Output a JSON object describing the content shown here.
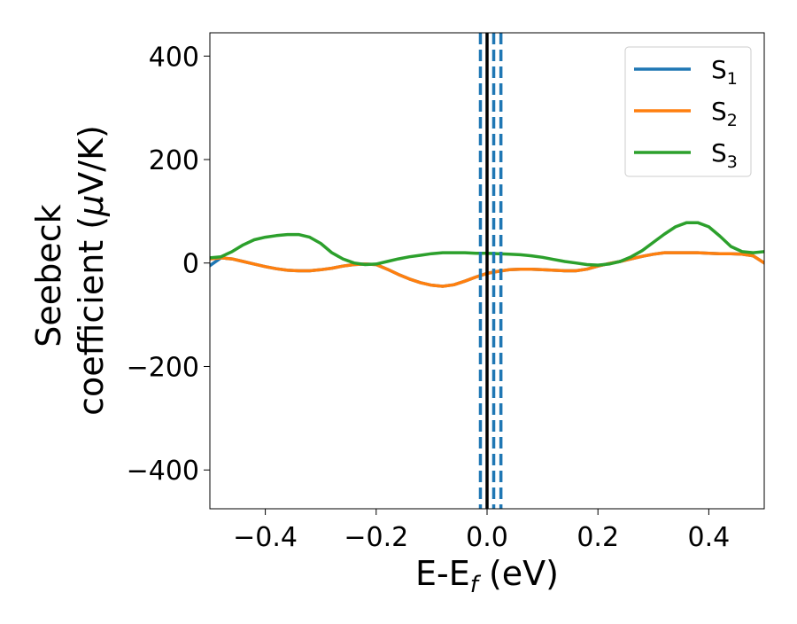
{
  "chart_data": {
    "type": "line",
    "title": "",
    "xlabel": "E-E",
    "xlabel_sub": "f",
    "xlabel_unit": " (eV)",
    "ylabel_line1": "Seebeck",
    "ylabel_line2": "coefficient  (",
    "ylabel_mu": "μ",
    "ylabel_unit": "V/K)",
    "xlim": [
      -0.5,
      0.5
    ],
    "ylim": [
      -475,
      445
    ],
    "xticks": [
      -0.4,
      -0.2,
      0.0,
      0.2,
      0.4
    ],
    "xtick_labels": [
      "−0.4",
      "−0.2",
      "0.0",
      "0.2",
      "0.4"
    ],
    "yticks": [
      -400,
      -200,
      0,
      200,
      400
    ],
    "ytick_labels": [
      "−400",
      "−200",
      "0",
      "200",
      "400"
    ],
    "grid": false,
    "legend_position": "top-right",
    "series": [
      {
        "name": "S",
        "name_sub": "1",
        "color": "#1f77b4",
        "x": [
          -0.5,
          -0.48,
          -0.46,
          -0.44,
          -0.42,
          -0.4,
          -0.38,
          -0.36,
          -0.34,
          -0.32,
          -0.3,
          -0.28,
          -0.26,
          -0.24,
          -0.22,
          -0.2,
          -0.18,
          -0.16,
          -0.14,
          -0.12,
          -0.1,
          -0.08,
          -0.06,
          -0.04,
          -0.02,
          0.0,
          0.02,
          0.04,
          0.06,
          0.08,
          0.1,
          0.12,
          0.14,
          0.16,
          0.18,
          0.2,
          0.22,
          0.24,
          0.26,
          0.28,
          0.3,
          0.32,
          0.34,
          0.36,
          0.38,
          0.4,
          0.42,
          0.44,
          0.46,
          0.48,
          0.5
        ],
        "y": [
          -5,
          10,
          8,
          3,
          -2,
          -7,
          -11,
          -14,
          -15,
          -15,
          -13,
          -10,
          -6,
          -3,
          -2,
          -3,
          -12,
          -22,
          -31,
          -38,
          -43,
          -45,
          -42,
          -35,
          -27,
          -20,
          -16,
          -13,
          -12,
          -12,
          -13,
          -14,
          -15,
          -15,
          -12,
          -6,
          -1,
          3,
          8,
          13,
          17,
          20,
          20,
          20,
          20,
          19,
          18,
          18,
          17,
          14,
          0
        ]
      },
      {
        "name": "S",
        "name_sub": "2",
        "color": "#ff7f0e",
        "x": [
          -0.5,
          -0.48,
          -0.46,
          -0.44,
          -0.42,
          -0.4,
          -0.38,
          -0.36,
          -0.34,
          -0.32,
          -0.3,
          -0.28,
          -0.26,
          -0.24,
          -0.22,
          -0.2,
          -0.18,
          -0.16,
          -0.14,
          -0.12,
          -0.1,
          -0.08,
          -0.06,
          -0.04,
          -0.02,
          0.0,
          0.02,
          0.04,
          0.06,
          0.08,
          0.1,
          0.12,
          0.14,
          0.16,
          0.18,
          0.2,
          0.22,
          0.24,
          0.26,
          0.28,
          0.3,
          0.32,
          0.34,
          0.36,
          0.38,
          0.4,
          0.42,
          0.44,
          0.46,
          0.48,
          0.5
        ],
        "y": [
          8,
          10,
          8,
          3,
          -2,
          -7,
          -11,
          -14,
          -15,
          -15,
          -13,
          -10,
          -6,
          -3,
          -2,
          -3,
          -12,
          -22,
          -31,
          -38,
          -43,
          -45,
          -42,
          -35,
          -27,
          -20,
          -16,
          -13,
          -12,
          -12,
          -13,
          -14,
          -15,
          -15,
          -12,
          -6,
          -1,
          3,
          8,
          13,
          17,
          20,
          20,
          20,
          20,
          19,
          18,
          18,
          17,
          14,
          0
        ]
      },
      {
        "name": "S",
        "name_sub": "3",
        "color": "#2ca02c",
        "x": [
          -0.5,
          -0.48,
          -0.46,
          -0.44,
          -0.42,
          -0.4,
          -0.38,
          -0.36,
          -0.34,
          -0.32,
          -0.3,
          -0.28,
          -0.26,
          -0.24,
          -0.22,
          -0.2,
          -0.18,
          -0.16,
          -0.14,
          -0.12,
          -0.1,
          -0.08,
          -0.06,
          -0.04,
          -0.02,
          0.0,
          0.02,
          0.04,
          0.06,
          0.08,
          0.1,
          0.12,
          0.14,
          0.16,
          0.18,
          0.2,
          0.22,
          0.24,
          0.26,
          0.28,
          0.3,
          0.32,
          0.34,
          0.36,
          0.38,
          0.4,
          0.42,
          0.44,
          0.46,
          0.48,
          0.5
        ],
        "y": [
          10,
          12,
          22,
          35,
          45,
          50,
          53,
          55,
          55,
          50,
          38,
          20,
          8,
          0,
          -3,
          -2,
          3,
          8,
          12,
          15,
          18,
          20,
          20,
          20,
          19,
          19,
          18,
          17,
          16,
          14,
          11,
          7,
          3,
          0,
          -3,
          -4,
          -2,
          3,
          12,
          24,
          40,
          56,
          70,
          78,
          78,
          70,
          52,
          32,
          22,
          20,
          22
        ]
      }
    ],
    "vertical_lines": [
      {
        "x": 0.0,
        "style": "solid",
        "color": "#000000"
      },
      {
        "x": -0.012,
        "style": "dashed",
        "color": "#1f77b4"
      },
      {
        "x": 0.012,
        "style": "dashed",
        "color": "#1f77b4"
      },
      {
        "x": 0.025,
        "style": "dashed",
        "color": "#1f77b4"
      }
    ]
  }
}
